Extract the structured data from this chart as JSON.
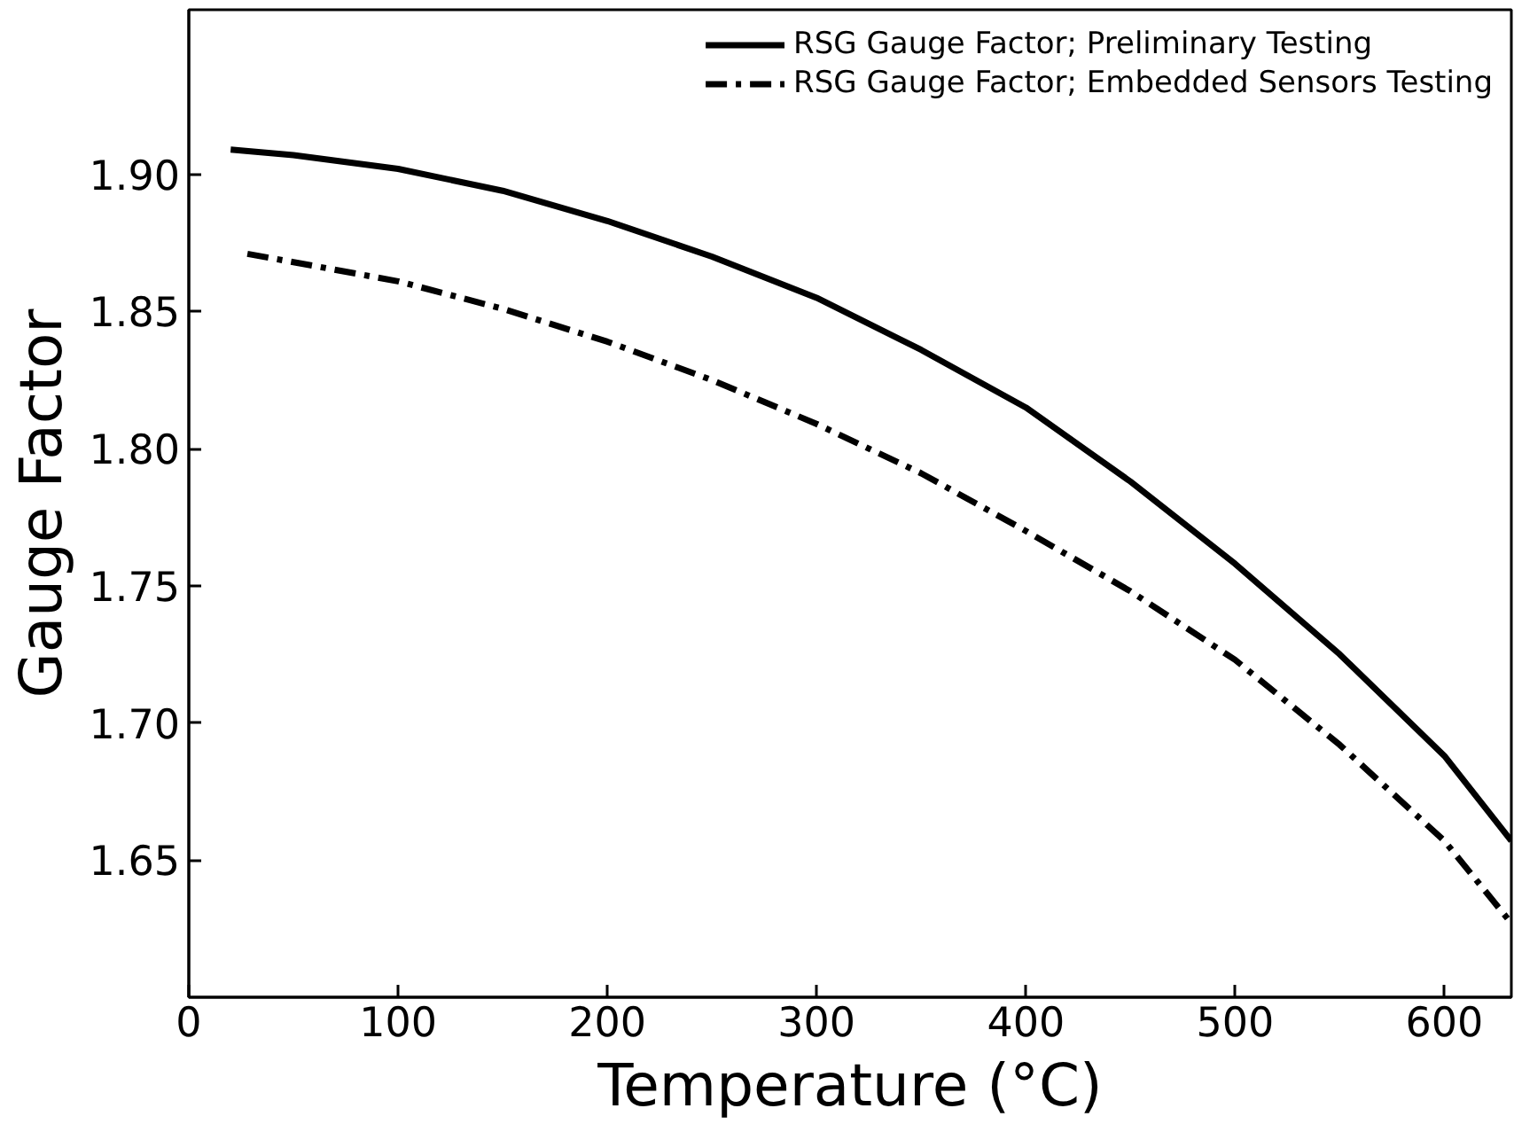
{
  "chart_data": {
    "type": "line",
    "xlabel": "Temperature (°C)",
    "ylabel": "Gauge Factor",
    "xlim": [
      0,
      632
    ],
    "ylim": [
      1.6,
      1.96
    ],
    "xticks": [
      0,
      100,
      200,
      300,
      400,
      500,
      600
    ],
    "yticks": [
      {
        "value": 1.65,
        "label": "1.65"
      },
      {
        "value": 1.7,
        "label": "1.70"
      },
      {
        "value": 1.75,
        "label": "1.75"
      },
      {
        "value": 1.8,
        "label": "1.80"
      },
      {
        "value": 1.85,
        "label": "1.85"
      },
      {
        "value": 1.9,
        "label": "1.90"
      }
    ],
    "grid": false,
    "legend": "top right",
    "marker": "none",
    "series": [
      {
        "name": "RSG Gauge Factor; Preliminary Testing",
        "color": "#000000",
        "line_style": "solid",
        "x": [
          20,
          50,
          100,
          150,
          200,
          250,
          300,
          350,
          400,
          450,
          500,
          550,
          600,
          632
        ],
        "values": [
          1.909,
          1.907,
          1.902,
          1.894,
          1.883,
          1.87,
          1.855,
          1.836,
          1.815,
          1.788,
          1.758,
          1.725,
          1.688,
          1.657
        ]
      },
      {
        "name": "RSG Gauge Factor; Embedded Sensors Testing",
        "color": "#000000",
        "line_style": "dashdot",
        "x": [
          28,
          50,
          100,
          150,
          200,
          250,
          300,
          350,
          400,
          450,
          500,
          550,
          600,
          632
        ],
        "values": [
          1.871,
          1.868,
          1.861,
          1.851,
          1.839,
          1.825,
          1.809,
          1.791,
          1.77,
          1.748,
          1.723,
          1.692,
          1.657,
          1.627
        ]
      }
    ]
  }
}
